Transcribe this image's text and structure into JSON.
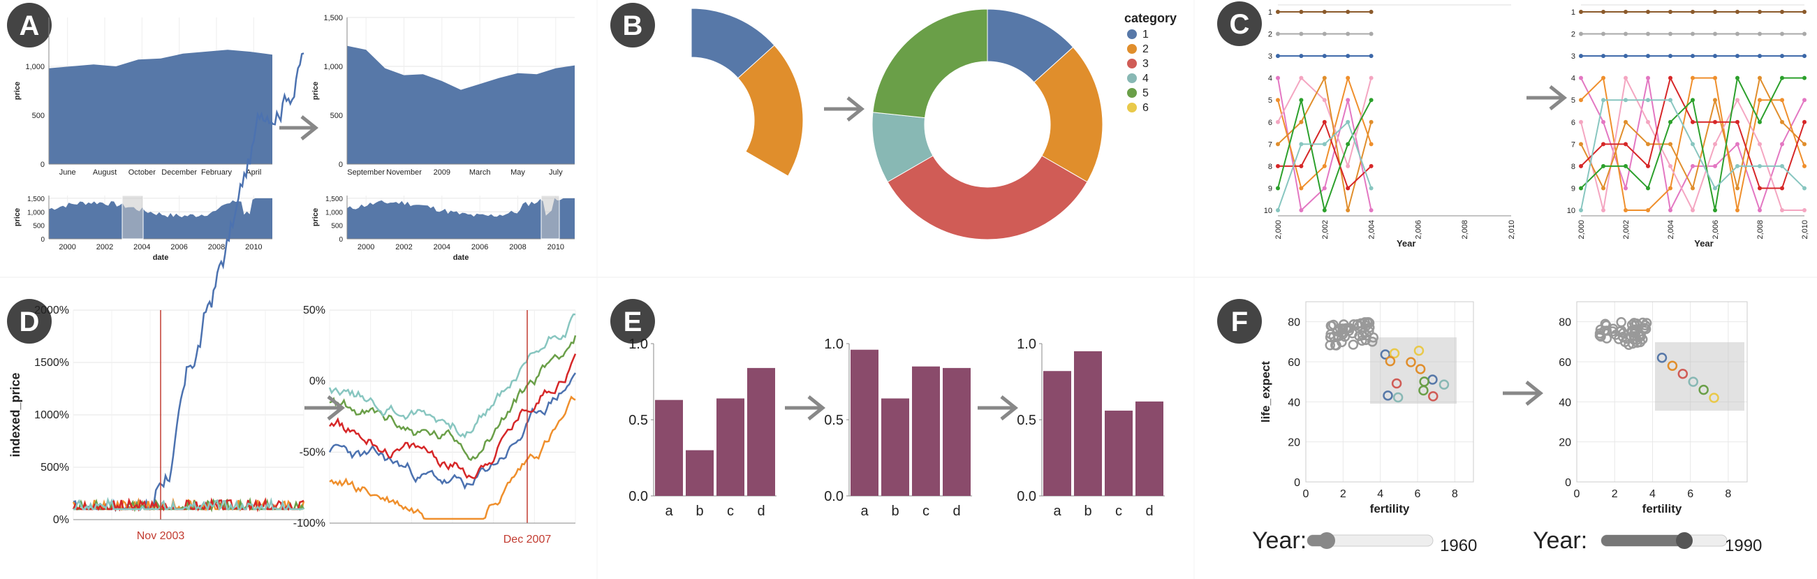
{
  "colors": {
    "blue": "#5778a8",
    "red": "#c23b30",
    "maroon": "#8a4b6b",
    "cat1": "#5778a8",
    "cat2": "#e08e2c",
    "cat3": "#d05c56",
    "cat4": "#88b8b4",
    "cat5": "#6a9f48",
    "cat6": "#e9c94a",
    "arrow": "#888888",
    "badge": "#444444"
  },
  "panels": {
    "A": {
      "badge": "A",
      "left_main": {
        "ylabel": "price",
        "yticks": [
          "0",
          "500",
          "1,000"
        ],
        "xticks": [
          "June",
          "August",
          "October",
          "December",
          "February",
          "April"
        ],
        "values": [
          980,
          1000,
          1020,
          1000,
          1070,
          1080,
          1130,
          1150,
          1170,
          1150,
          1120
        ]
      },
      "right_main": {
        "ylabel": "price",
        "yticks": [
          "0",
          "500",
          "1,000",
          "1,500"
        ],
        "xticks": [
          "September",
          "November",
          "2009",
          "March",
          "May",
          "July"
        ],
        "values": [
          1210,
          1170,
          980,
          910,
          920,
          850,
          760,
          820,
          880,
          930,
          920,
          980,
          1010
        ]
      },
      "left_overview": {
        "ylabel": "price",
        "xlabel": "date",
        "yticks": [
          "0",
          "500",
          "1,000",
          "1,500"
        ],
        "xticks": [
          "2000",
          "2002",
          "2004",
          "2006",
          "2008",
          "2010"
        ]
      },
      "right_overview": {
        "ylabel": "price",
        "xlabel": "date",
        "yticks": [
          "0",
          "500",
          "1,000",
          "1,500"
        ],
        "xticks": [
          "2000",
          "2002",
          "2004",
          "2006",
          "2008",
          "2010"
        ]
      }
    },
    "B": {
      "badge": "B",
      "legend_title": "category",
      "legend_items": [
        "1",
        "2",
        "3",
        "4",
        "5",
        "6"
      ],
      "left_values": [
        4,
        6
      ],
      "right_values": [
        4,
        6,
        10,
        3,
        7,
        0
      ]
    },
    "C": {
      "badge": "C",
      "xlabel": "Year",
      "ranks": [
        "1",
        "2",
        "3",
        "4",
        "5",
        "6",
        "7",
        "8",
        "9",
        "10"
      ],
      "xticks": [
        "2,000",
        "2,002",
        "2,004",
        "2,006",
        "2,008",
        "2,010"
      ]
    },
    "D": {
      "badge": "D",
      "ylabel": "indexed_price",
      "left_yticks": [
        "0%",
        "500%",
        "1000%",
        "1500%",
        "2000%"
      ],
      "right_yticks": [
        "-100%",
        "-50%",
        "0%",
        "50%"
      ],
      "left_rule_label": "Nov 2003",
      "right_rule_label": "Dec 2007"
    },
    "E": {
      "badge": "E",
      "yticks": [
        "0.0",
        "0.5",
        "1.0"
      ],
      "categories": [
        "a",
        "b",
        "c",
        "d"
      ],
      "chart1": [
        0.63,
        0.3,
        0.64,
        0.84
      ],
      "chart2": [
        0.96,
        0.64,
        0.85,
        0.84
      ],
      "chart3": [
        0.82,
        0.95,
        0.56,
        0.62
      ]
    },
    "F": {
      "badge": "F",
      "ylabel": "life_expect",
      "xlabel": "fertility",
      "yticks": [
        "0",
        "20",
        "40",
        "60",
        "80"
      ],
      "xticks": [
        "0",
        "2",
        "4",
        "6",
        "8"
      ],
      "slider_label": "Year:",
      "left_year": "1960",
      "right_year": "1990"
    }
  },
  "chart_data": [
    {
      "type": "area",
      "panel": "A",
      "title": "",
      "xlabel": "date",
      "ylabel": "price",
      "series": [
        {
          "values": [
            980,
            1000,
            1020,
            1000,
            1070,
            1080,
            1130,
            1150,
            1170,
            1150,
            1120
          ]
        }
      ],
      "ylim": [
        0,
        1200
      ]
    },
    {
      "type": "pie",
      "panel": "B",
      "categories": [
        "1",
        "2",
        "3",
        "4",
        "5",
        "6"
      ],
      "values": [
        4,
        6,
        10,
        3,
        7,
        0
      ]
    },
    {
      "type": "line",
      "panel": "C",
      "xlabel": "Year",
      "x": [
        2000,
        2001,
        2002,
        2003,
        2004,
        2005,
        2006,
        2007,
        2008,
        2009,
        2010
      ]
    },
    {
      "type": "line",
      "panel": "D",
      "ylabel": "indexed_price"
    },
    {
      "type": "bar",
      "panel": "E",
      "categories": [
        "a",
        "b",
        "c",
        "d"
      ],
      "series": [
        {
          "values": [
            0.63,
            0.3,
            0.64,
            0.84
          ]
        },
        {
          "values": [
            0.96,
            0.64,
            0.85,
            0.84
          ]
        },
        {
          "values": [
            0.82,
            0.95,
            0.56,
            0.62
          ]
        }
      ],
      "ylim": [
        0,
        1.0
      ]
    },
    {
      "type": "scatter",
      "panel": "F",
      "xlabel": "fertility",
      "ylabel": "life_expect",
      "xlim": [
        0,
        9
      ],
      "ylim": [
        0,
        90
      ]
    }
  ]
}
